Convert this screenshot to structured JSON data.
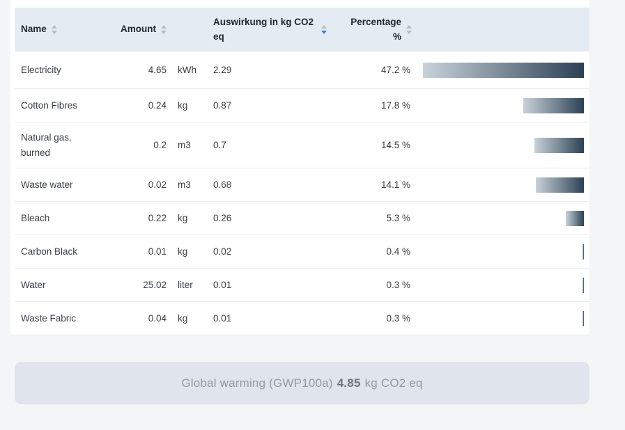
{
  "table": {
    "columns": [
      {
        "id": "name",
        "label": "Name",
        "sortable": true,
        "sort": "none"
      },
      {
        "id": "amount",
        "label": "Amount",
        "sortable": true,
        "sort": "none"
      },
      {
        "id": "impact",
        "label": "Auswirkung in kg CO2 eq",
        "sortable": true,
        "sort": "desc"
      },
      {
        "id": "percentage",
        "label": "Percentage %",
        "sortable": true,
        "sort": "none"
      }
    ],
    "max_percent": 47.2,
    "rows": [
      {
        "name": "Electricity",
        "amount": "4.65",
        "unit": "kWh",
        "impact": "2.29",
        "percentage": "47.2 %",
        "percent_value": 47.2
      },
      {
        "name": "Cotton Fibres",
        "amount": "0.24",
        "unit": "kg",
        "impact": "0.87",
        "percentage": "17.8 %",
        "percent_value": 17.8
      },
      {
        "name": "Natural gas, burned",
        "amount": "0.2",
        "unit": "m3",
        "impact": "0.7",
        "percentage": "14.5 %",
        "percent_value": 14.5
      },
      {
        "name": "Waste water",
        "amount": "0.02",
        "unit": "m3",
        "impact": "0.68",
        "percentage": "14.1 %",
        "percent_value": 14.1
      },
      {
        "name": "Bleach",
        "amount": "0.22",
        "unit": "kg",
        "impact": "0.26",
        "percentage": "5.3 %",
        "percent_value": 5.3
      },
      {
        "name": "Carbon Black",
        "amount": "0.01",
        "unit": "kg",
        "impact": "0.02",
        "percentage": "0.4 %",
        "percent_value": 0.4
      },
      {
        "name": "Water",
        "amount": "25.02",
        "unit": "liter",
        "impact": "0.01",
        "percentage": "0.3 %",
        "percent_value": 0.3
      },
      {
        "name": "Waste Fabric",
        "amount": "0.04",
        "unit": "kg",
        "impact": "0.01",
        "percentage": "0.3 %",
        "percent_value": 0.3
      }
    ]
  },
  "summary": {
    "label": "Global warming (GWP100a)",
    "value": "4.85",
    "unit": "kg CO2 eq"
  },
  "colors": {
    "page_bg": "#f4f5f6",
    "card_bg": "#ffffff",
    "header_bg": "#e4ebf3",
    "bar_start": "#c9d2da",
    "bar_end": "#2b4154",
    "sort_gray": "#b7bcc2",
    "sort_blue": "#2e86eb",
    "summary_bg": "#dfe4ed",
    "summary_text": "#9199a3",
    "summary_value": "#6e747e"
  }
}
